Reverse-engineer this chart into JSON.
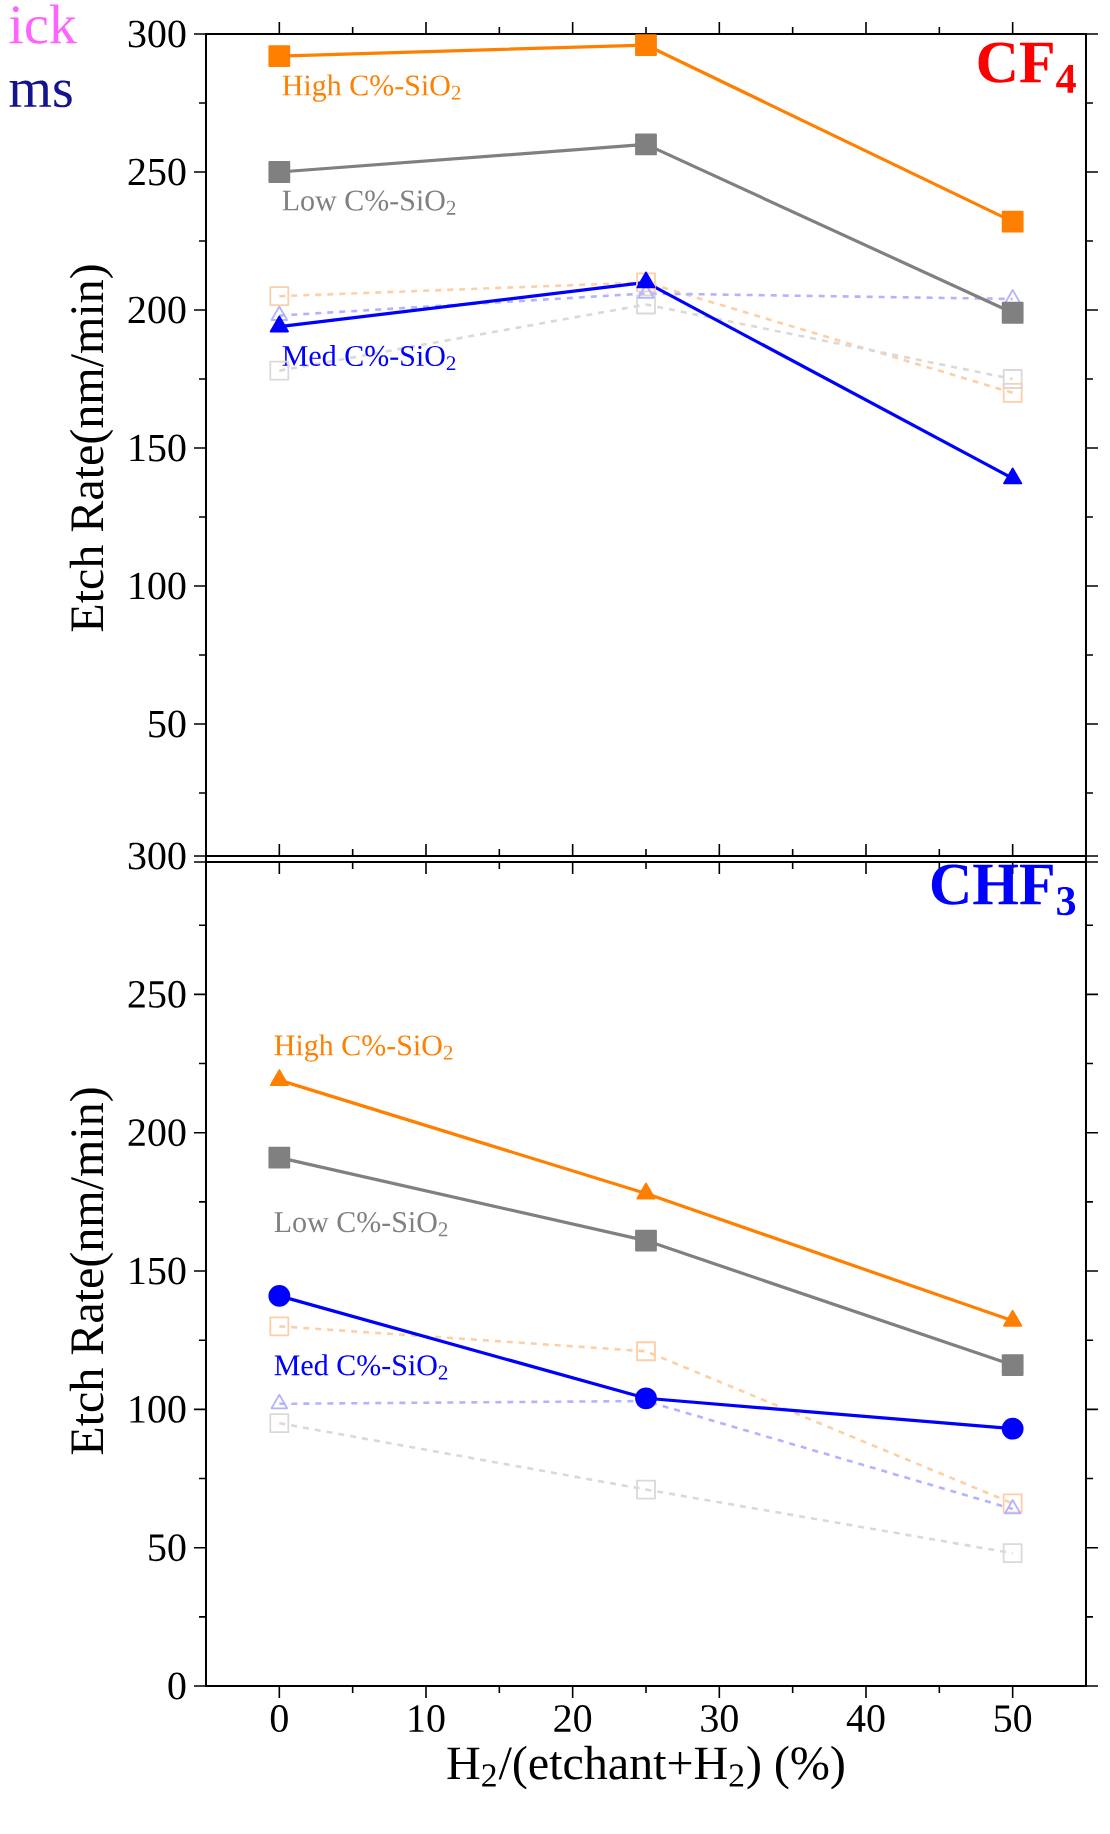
{
  "chart_data": [
    {
      "type": "line",
      "title": "CF$_{4}$",
      "ylabel": "Etch Rate(nm/min)",
      "annotations": [
        "ick",
        "ms"
      ],
      "tick_labels": "y",
      "x": [
        0,
        25,
        50
      ],
      "xlim": [
        -5,
        55
      ],
      "xticks": [
        0,
        10,
        20,
        30,
        40,
        50
      ],
      "ylim": [
        0,
        300
      ],
      "yticks": [
        {
          "value": 0,
          "label": null
        },
        50,
        100,
        150,
        200,
        250,
        300
      ],
      "series": [
        {
          "name": "High C%-SiO$_{2}$",
          "color": "#ff8000",
          "values": [
            292,
            296,
            232
          ],
          "marker": "square",
          "line_style": "solid"
        },
        {
          "name": "Low C%-SiO$_{2}$",
          "color": "#808080",
          "values": [
            250,
            260,
            199
          ],
          "marker": "square",
          "line_style": "solid"
        },
        {
          "name": "Med C%-SiO$_{2}$",
          "color": "#0000ff",
          "values": [
            194,
            210,
            139
          ],
          "marker": "triangle",
          "line_style": "solid"
        },
        {
          "color": "#fdcfa6",
          "values": [
            205,
            210,
            170
          ],
          "marker": "square",
          "line_style": "dashed"
        },
        {
          "color": "#d9d9d9",
          "values": [
            178,
            202,
            175
          ],
          "marker": "square",
          "line_style": "dashed"
        },
        {
          "color": "#b3b3ff",
          "values": [
            198,
            206,
            204
          ],
          "marker": "triangle",
          "line_style": "dashed"
        }
      ]
    },
    {
      "type": "line",
      "title": "CHF$_{3}$",
      "xlabel": "H$_{2}$/(etchant+H$_{2}$) (%)",
      "ylabel": "Etch Rate(nm/min)",
      "x": [
        0,
        25,
        50
      ],
      "xlim": [
        -5,
        55
      ],
      "xticks": [
        0,
        10,
        20,
        30,
        40,
        50
      ],
      "ylim": [
        0,
        300
      ],
      "yticks": [
        0,
        50,
        100,
        150,
        200,
        250,
        300
      ],
      "series": [
        {
          "name": "High C%-SiO$_{2}$",
          "color": "#ff8000",
          "values": [
            219,
            178,
            132
          ],
          "marker": "triangle",
          "line_style": "solid"
        },
        {
          "name": "Low C%-SiO$_{2}$",
          "color": "#808080",
          "values": [
            191,
            161,
            116
          ],
          "marker": "square",
          "line_style": "solid"
        },
        {
          "name": "Med C%-SiO$_{2}$",
          "color": "#0000ff",
          "values": [
            141,
            104,
            93
          ],
          "marker": "circle",
          "line_style": "solid"
        },
        {
          "color": "#fdcfa6",
          "values": [
            130,
            121,
            66
          ],
          "marker": "square",
          "line_style": "dashed"
        },
        {
          "color": "#b3b3ff",
          "values": [
            102,
            103,
            64
          ],
          "marker": "triangle",
          "line_style": "dashed"
        },
        {
          "color": "#d9d9d9",
          "values": [
            95,
            71,
            48
          ],
          "marker": "square",
          "line_style": "dashed"
        }
      ]
    }
  ]
}
